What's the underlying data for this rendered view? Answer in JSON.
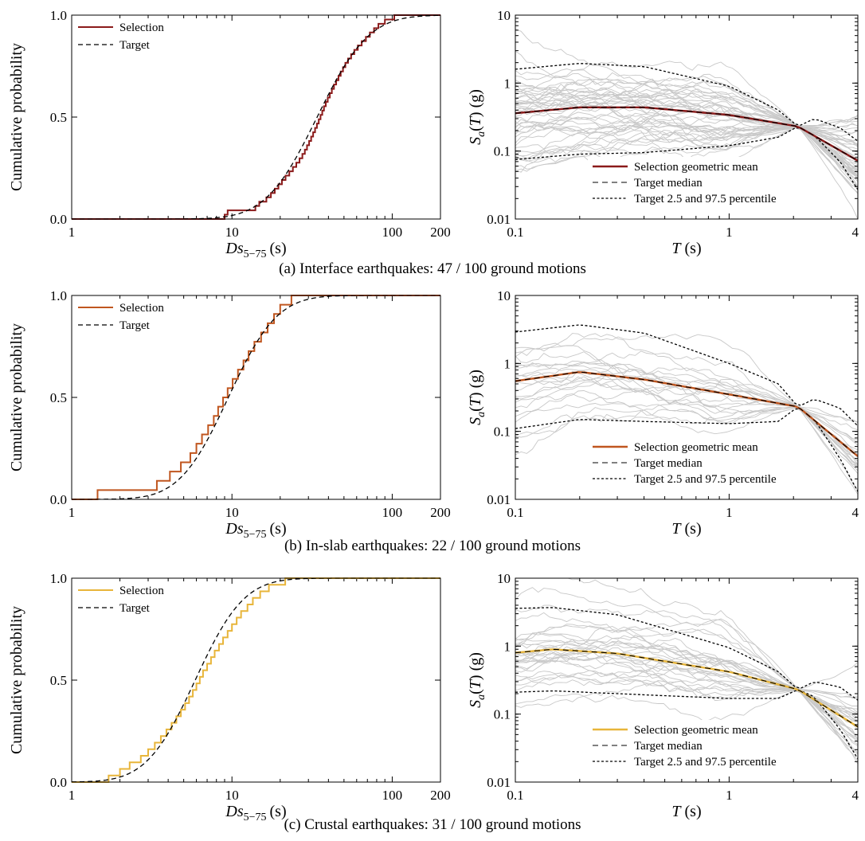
{
  "figure": {
    "rows": [
      {
        "caption": "(a) Interface earthquakes: 47 / 100 ground motions",
        "color": "#8b1a1a"
      },
      {
        "caption": "(b) In-slab earthquakes: 22 / 100 ground motions",
        "color": "#c0561f"
      },
      {
        "caption": "(c) Crustal earthquakes: 31 / 100 ground motions",
        "color": "#e8b53a"
      }
    ],
    "background_curve_color": "#c8c8c8"
  },
  "chart_data": [
    {
      "type": "line",
      "row": 0,
      "kind": "cdf",
      "xlabel_main": "Ds",
      "xlabel_sub": "5−75",
      "xlabel_unit": "(s)",
      "ylabel": "Cumulative probability",
      "xscale": "log",
      "xlim": [
        1,
        200
      ],
      "ylim": [
        0,
        1
      ],
      "xticks": [
        1,
        10,
        100,
        200
      ],
      "xtick_labels": [
        "1",
        "10",
        "100",
        "200"
      ],
      "yticks": [
        0,
        0.5,
        1
      ],
      "ytick_labels": [
        "0.0",
        "0.5",
        "1.0"
      ],
      "legend": {
        "placement": "top-left",
        "entries": [
          "Selection",
          "Target"
        ]
      },
      "target": {
        "name": "Target",
        "dist": "lognormal",
        "median": 34,
        "sigma_ln": 0.58
      },
      "selection": {
        "name": "Selection",
        "x": [
          9.0,
          9.4,
          14.0,
          14.8,
          16.4,
          17.5,
          18.5,
          19.5,
          20.5,
          21.6,
          22.8,
          24.0,
          25.2,
          26.4,
          27.5,
          28.5,
          29.4,
          30.3,
          31.2,
          32.1,
          33.0,
          33.9,
          34.8,
          35.7,
          36.6,
          37.5,
          38.5,
          39.6,
          40.8,
          42.0,
          43.3,
          44.7,
          46.2,
          47.7,
          49.3,
          51.0,
          53.0,
          55.4,
          58.0,
          61.0,
          64.5,
          68.5,
          72.5,
          77.0,
          82.0,
          90.0,
          103.0
        ],
        "y_max": 1.0
      }
    },
    {
      "type": "line",
      "row": 0,
      "kind": "spectrum",
      "xlabel": "T (s)",
      "ylabel": "Sa(T) (g)",
      "xscale": "log",
      "yscale": "log",
      "xlim": [
        0.1,
        4
      ],
      "ylim": [
        0.01,
        10
      ],
      "xticks": [
        0.1,
        1,
        4
      ],
      "xtick_labels": [
        "0.1",
        "1",
        "4"
      ],
      "yticks": [
        0.01,
        0.1,
        1,
        10
      ],
      "ytick_labels": [
        "0.01",
        "0.1",
        "1",
        "10"
      ],
      "legend": {
        "placement": "bottom-right",
        "entries": [
          "Selection geometric mean",
          "Target median",
          "Target 2.5 and 97.5 percentile"
        ]
      },
      "conditioning_period": 2.1,
      "median": {
        "T": [
          0.1,
          0.2,
          0.4,
          1.0,
          2.1,
          4.0
        ],
        "Sa": [
          0.36,
          0.44,
          0.44,
          0.34,
          0.23,
          0.072
        ]
      },
      "upper": {
        "T": [
          0.1,
          0.2,
          0.4,
          1.0,
          1.7,
          2.1,
          2.5,
          3.3,
          4.0
        ],
        "Sa": [
          1.6,
          1.95,
          1.75,
          0.9,
          0.4,
          0.23,
          0.3,
          0.22,
          0.14
        ]
      },
      "lower": {
        "T": [
          0.1,
          0.2,
          0.4,
          1.0,
          1.7,
          2.1,
          2.5,
          3.3,
          4.0
        ],
        "Sa": [
          0.075,
          0.09,
          0.095,
          0.12,
          0.16,
          0.23,
          0.17,
          0.07,
          0.027
        ]
      },
      "records": 47,
      "record_spread_ln": 0.55
    },
    {
      "type": "line",
      "row": 1,
      "kind": "cdf",
      "xlabel_main": "Ds",
      "xlabel_sub": "5−75",
      "xlabel_unit": "(s)",
      "ylabel": "Cumulative probability",
      "xscale": "log",
      "xlim": [
        1,
        200
      ],
      "ylim": [
        0,
        1
      ],
      "xticks": [
        1,
        10,
        100,
        200
      ],
      "xtick_labels": [
        "1",
        "10",
        "100",
        "200"
      ],
      "yticks": [
        0,
        0.5,
        1
      ],
      "ytick_labels": [
        "0.0",
        "0.5",
        "1.0"
      ],
      "legend": {
        "placement": "top-left",
        "entries": [
          "Selection",
          "Target"
        ]
      },
      "target": {
        "name": "Target",
        "dist": "lognormal",
        "median": 9.5,
        "sigma_ln": 0.55
      },
      "selection": {
        "name": "Selection",
        "x": [
          1.45,
          3.4,
          4.1,
          4.8,
          5.5,
          6.0,
          6.5,
          7.1,
          7.7,
          8.2,
          8.8,
          9.4,
          10.1,
          10.9,
          11.8,
          12.7,
          13.8,
          15.2,
          16.7,
          18.3,
          20.0,
          23.5
        ],
        "y_max": 1.0
      }
    },
    {
      "type": "line",
      "row": 1,
      "kind": "spectrum",
      "xlabel": "T (s)",
      "ylabel": "Sa(T) (g)",
      "xscale": "log",
      "yscale": "log",
      "xlim": [
        0.1,
        4
      ],
      "ylim": [
        0.01,
        10
      ],
      "xticks": [
        0.1,
        1,
        4
      ],
      "xtick_labels": [
        "0.1",
        "1",
        "4"
      ],
      "yticks": [
        0.01,
        0.1,
        1,
        10
      ],
      "ytick_labels": [
        "0.01",
        "0.1",
        "1",
        "10"
      ],
      "legend": {
        "placement": "bottom-right",
        "entries": [
          "Selection geometric mean",
          "Target median",
          "Target 2.5 and 97.5 percentile"
        ]
      },
      "conditioning_period": 2.1,
      "median": {
        "T": [
          0.1,
          0.2,
          0.4,
          1.0,
          2.1,
          4.0
        ],
        "Sa": [
          0.55,
          0.75,
          0.58,
          0.35,
          0.23,
          0.043
        ]
      },
      "upper": {
        "T": [
          0.1,
          0.2,
          0.4,
          1.0,
          1.7,
          2.1,
          2.5,
          3.3,
          4.0
        ],
        "Sa": [
          2.9,
          3.7,
          2.8,
          1.0,
          0.5,
          0.23,
          0.3,
          0.22,
          0.12
        ]
      },
      "lower": {
        "T": [
          0.1,
          0.2,
          0.4,
          1.0,
          1.7,
          2.1,
          2.5,
          3.3,
          4.0
        ],
        "Sa": [
          0.11,
          0.15,
          0.14,
          0.13,
          0.14,
          0.23,
          0.15,
          0.04,
          0.013
        ]
      },
      "records": 22,
      "record_spread_ln": 0.55
    },
    {
      "type": "line",
      "row": 2,
      "kind": "cdf",
      "xlabel_main": "Ds",
      "xlabel_sub": "5−75",
      "xlabel_unit": "(s)",
      "ylabel": "Cumulative probability",
      "xscale": "log",
      "xlim": [
        1,
        200
      ],
      "ylim": [
        0,
        1
      ],
      "xticks": [
        1,
        10,
        100,
        200
      ],
      "xtick_labels": [
        "1",
        "10",
        "100",
        "200"
      ],
      "yticks": [
        0,
        0.5,
        1
      ],
      "ytick_labels": [
        "0.0",
        "0.5",
        "1.0"
      ],
      "legend": {
        "placement": "top-left",
        "entries": [
          "Selection",
          "Target"
        ]
      },
      "target": {
        "name": "Target",
        "dist": "lognormal",
        "median": 5.9,
        "sigma_ln": 0.55
      },
      "selection": {
        "name": "Selection",
        "x": [
          1.7,
          2.0,
          2.3,
          2.7,
          3.0,
          3.3,
          3.6,
          3.9,
          4.2,
          4.5,
          4.8,
          5.1,
          5.4,
          5.7,
          6.0,
          6.3,
          6.6,
          7.0,
          7.4,
          7.8,
          8.3,
          8.8,
          9.4,
          10.0,
          10.7,
          11.4,
          12.5,
          13.5,
          15.0,
          17.0,
          21.5
        ],
        "y_max": 1.0
      }
    },
    {
      "type": "line",
      "row": 2,
      "kind": "spectrum",
      "xlabel": "T (s)",
      "ylabel": "Sa(T) (g)",
      "xscale": "log",
      "yscale": "log",
      "xlim": [
        0.1,
        4
      ],
      "ylim": [
        0.01,
        10
      ],
      "xticks": [
        0.1,
        1,
        4
      ],
      "xtick_labels": [
        "0.1",
        "1",
        "4"
      ],
      "yticks": [
        0.01,
        0.1,
        1,
        10
      ],
      "ytick_labels": [
        "0.01",
        "0.1",
        "1",
        "10"
      ],
      "legend": {
        "placement": "bottom-right",
        "entries": [
          "Selection geometric mean",
          "Target median",
          "Target 2.5 and 97.5 percentile"
        ]
      },
      "conditioning_period": 2.1,
      "median": {
        "T": [
          0.1,
          0.15,
          0.3,
          1.0,
          2.1,
          4.0
        ],
        "Sa": [
          0.8,
          0.9,
          0.78,
          0.42,
          0.23,
          0.065
        ]
      },
      "upper": {
        "T": [
          0.1,
          0.15,
          0.3,
          1.0,
          1.7,
          2.1,
          2.5,
          3.3,
          4.0
        ],
        "Sa": [
          3.6,
          3.7,
          2.9,
          0.95,
          0.42,
          0.23,
          0.3,
          0.25,
          0.16
        ]
      },
      "lower": {
        "T": [
          0.1,
          0.15,
          0.3,
          1.0,
          1.7,
          2.1,
          2.5,
          3.3,
          4.0
        ],
        "Sa": [
          0.21,
          0.22,
          0.2,
          0.17,
          0.17,
          0.23,
          0.18,
          0.06,
          0.022
        ]
      },
      "records": 31,
      "record_spread_ln": 0.5
    }
  ]
}
